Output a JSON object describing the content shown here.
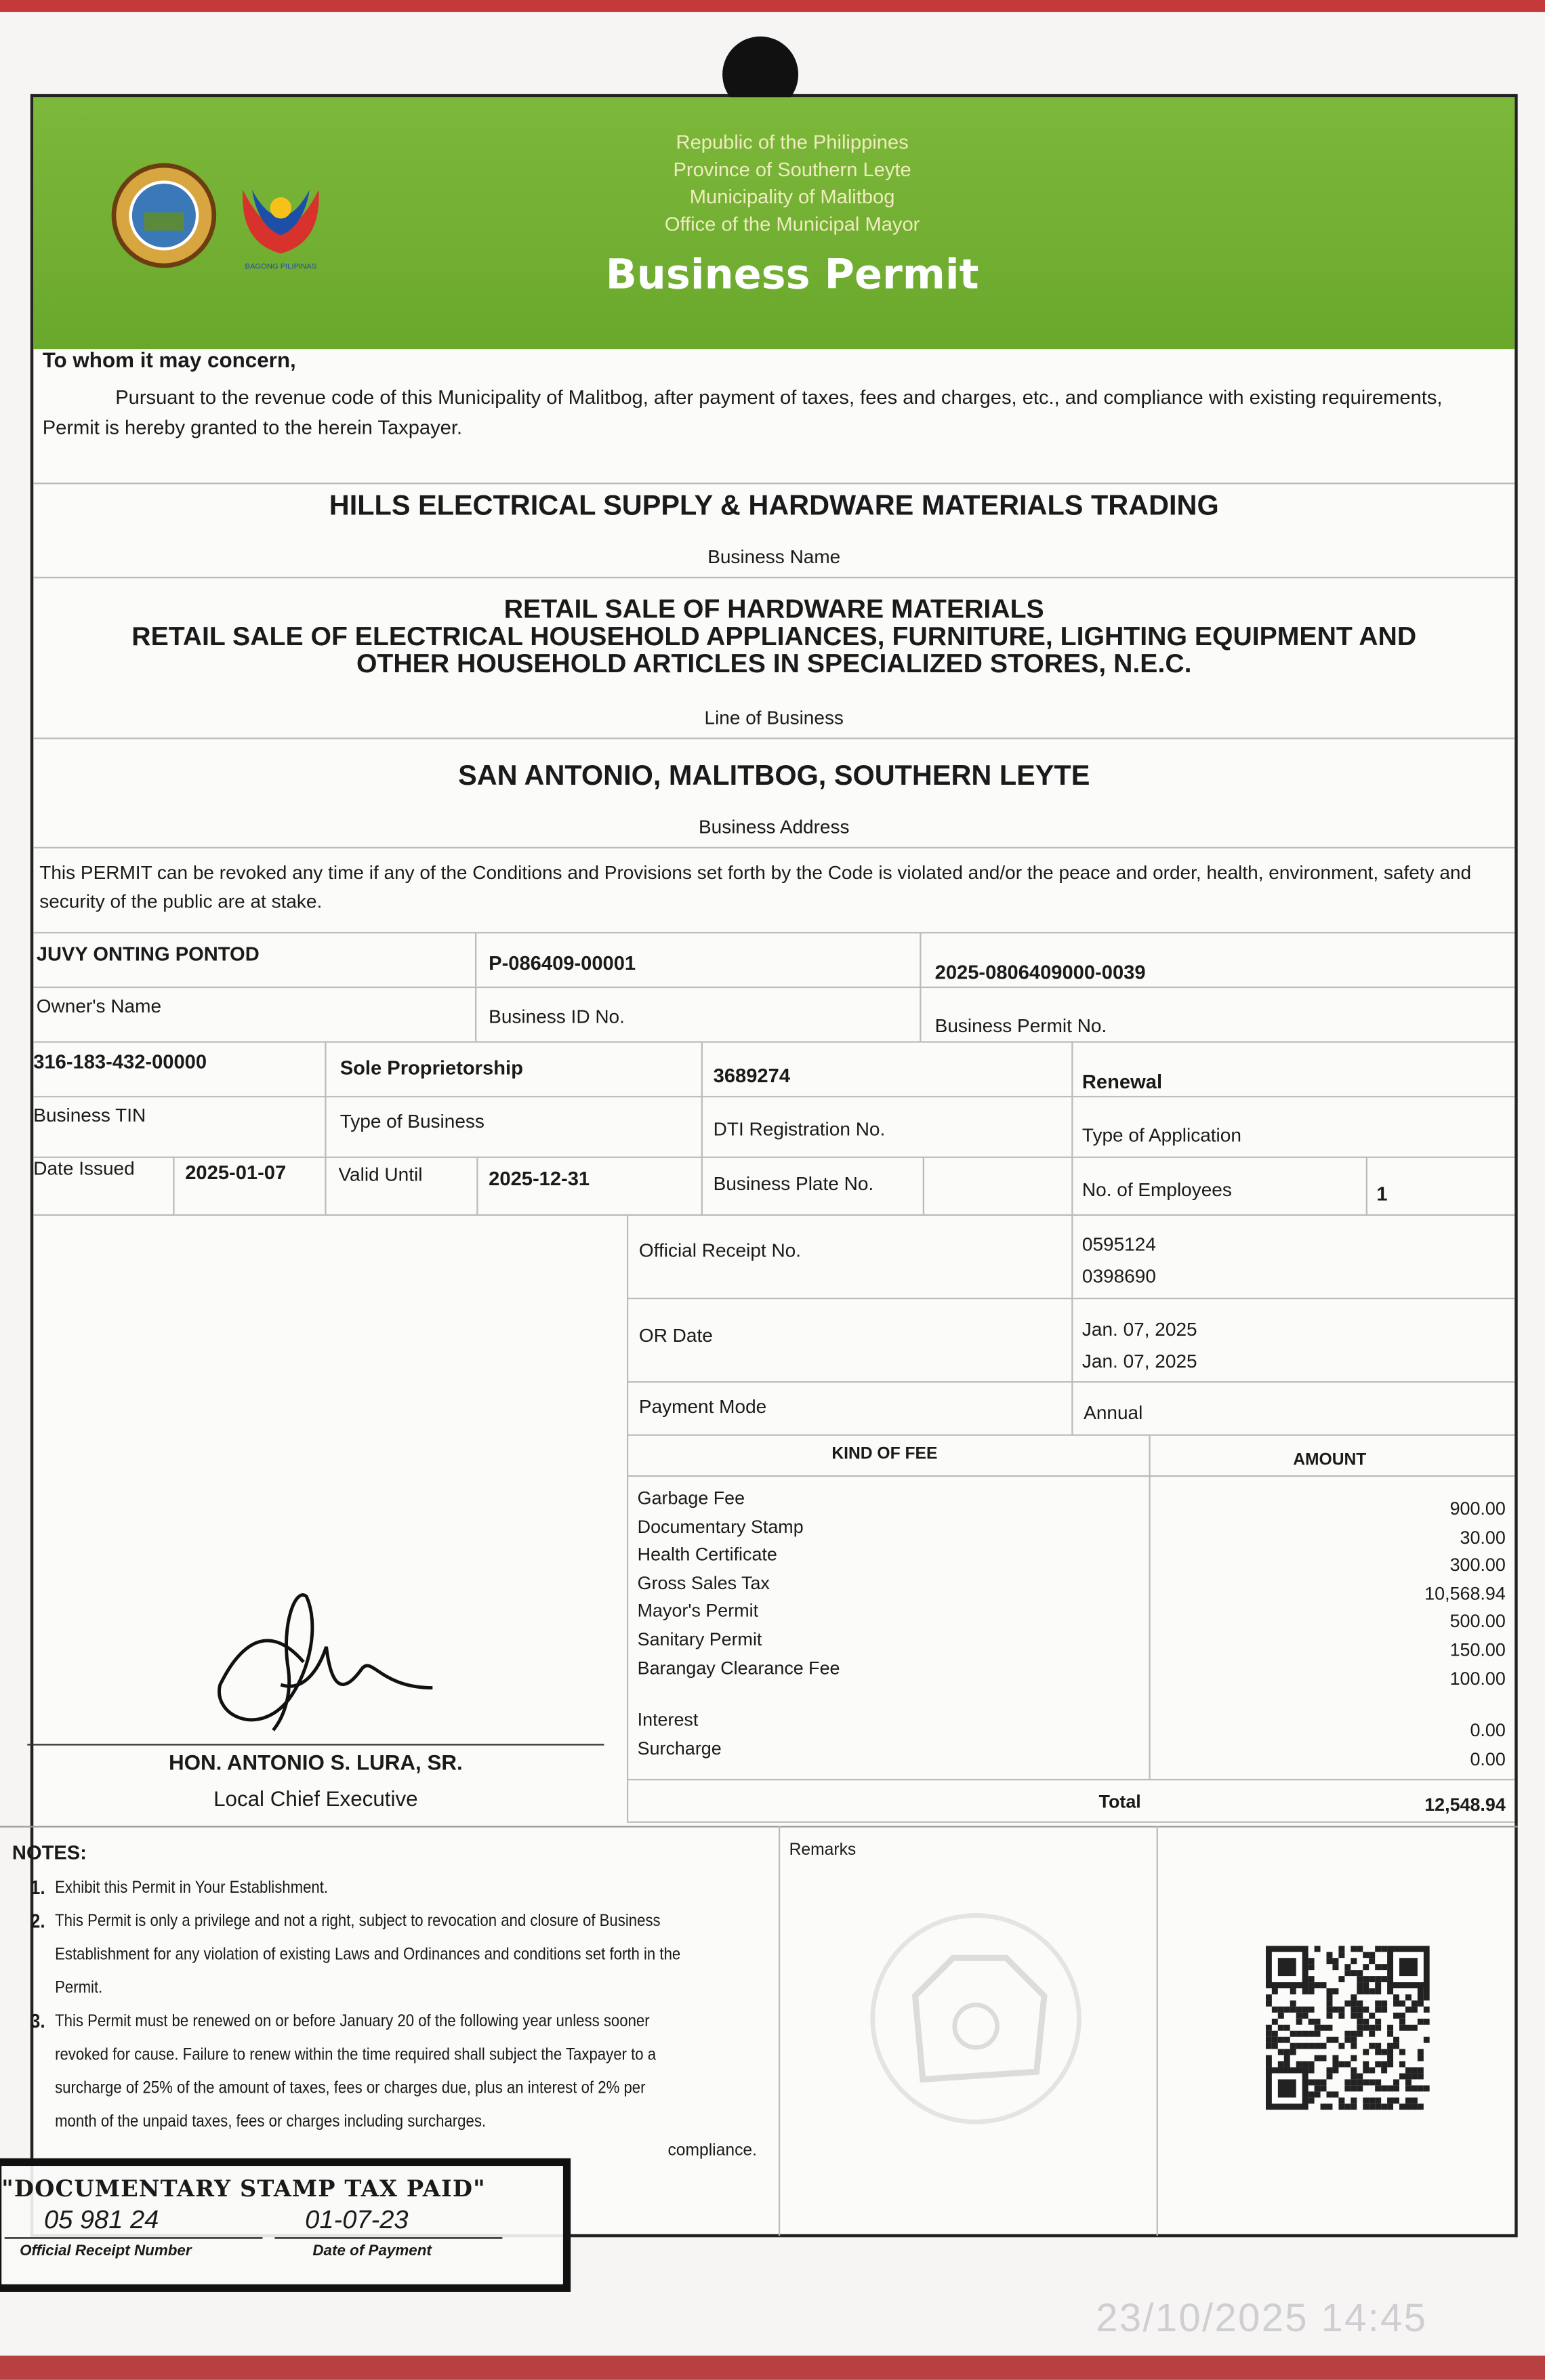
{
  "header": {
    "lines": [
      "Republic of the Philippines",
      "Province of Southern Leyte",
      "Municipality of Malitbog",
      "Office of the Municipal Mayor"
    ],
    "title": "Business Permit",
    "logo_text": "BAGONG PILIPINAS",
    "colors": {
      "header_green": "#72b032",
      "text": "#1a1a1a"
    }
  },
  "intro": {
    "salutation": "To whom it may concern,",
    "body": "Pursuant to the revenue code of this Municipality of Malitbog, after payment of taxes, fees and charges, etc., and compliance with existing requirements, Permit is hereby granted to the herein Taxpayer."
  },
  "business": {
    "name": "HILLS ELECTRICAL SUPPLY & HARDWARE MATERIALS TRADING",
    "name_label": "Business Name",
    "line_of_business": [
      "RETAIL SALE OF HARDWARE MATERIALS",
      "RETAIL SALE OF ELECTRICAL HOUSEHOLD APPLIANCES, FURNITURE, LIGHTING EQUIPMENT AND",
      "OTHER HOUSEHOLD ARTICLES IN SPECIALIZED STORES, N.E.C."
    ],
    "line_label": "Line of Business",
    "address": "SAN ANTONIO, MALITBOG, SOUTHERN LEYTE",
    "address_label": "Business Address"
  },
  "revocation": "This PERMIT can be revoked any time if any of the Conditions and Provisions set forth by the Code is violated and/or the peace and order, health, environment, safety and security of the public are at stake.",
  "details": {
    "owner_name": {
      "label": "Owner's Name",
      "value": "JUVY ONTING PONTOD"
    },
    "business_id": {
      "label": "Business ID No.",
      "value": "P-086409-00001"
    },
    "permit_no": {
      "label": "Business Permit No.",
      "value": "2025-0806409000-0039"
    },
    "tin": {
      "label": "Business TIN",
      "value": "316-183-432-00000"
    },
    "type_business": {
      "label": "Type of Business",
      "value": "Sole Proprietorship"
    },
    "dti": {
      "label": "DTI Registration No.",
      "value": "3689274"
    },
    "type_application": {
      "label": "Type of Application",
      "value": "Renewal"
    },
    "date_issued": {
      "label": "Date Issued",
      "value": "2025-01-07"
    },
    "valid_until": {
      "label": "Valid Until",
      "value": "2025-12-31"
    },
    "plate_no": {
      "label": "Business Plate No.",
      "value": ""
    },
    "employees": {
      "label": "No. of Employees",
      "value": "1"
    }
  },
  "payment": {
    "or_label": "Official Receipt No.",
    "or_values": [
      "0595124",
      "0398690"
    ],
    "or_date_label": "OR Date",
    "or_dates": [
      "Jan. 07, 2025",
      "Jan. 07, 2025"
    ],
    "mode_label": "Payment Mode",
    "mode": "Annual",
    "kind_header": "KIND OF FEE",
    "amount_header": "AMOUNT",
    "fees": [
      {
        "name": "Garbage Fee",
        "amount": "900.00"
      },
      {
        "name": "Documentary Stamp",
        "amount": "30.00"
      },
      {
        "name": "Health Certificate",
        "amount": "300.00"
      },
      {
        "name": "Gross Sales Tax",
        "amount": "10,568.94"
      },
      {
        "name": "Mayor's Permit",
        "amount": "500.00"
      },
      {
        "name": "Sanitary Permit",
        "amount": "150.00"
      },
      {
        "name": "Barangay Clearance Fee",
        "amount": "100.00"
      }
    ],
    "extra": [
      {
        "name": "Interest",
        "amount": "0.00"
      },
      {
        "name": "Surcharge",
        "amount": "0.00"
      }
    ],
    "total_label": "Total",
    "total": "12,548.94"
  },
  "signatory": {
    "name": "HON. ANTONIO S. LURA, SR.",
    "title": "Local Chief Executive"
  },
  "notes": {
    "heading": "NOTES:",
    "items": [
      {
        "num": "1.",
        "lines": [
          "Exhibit this Permit in Your Establishment."
        ]
      },
      {
        "num": "2.",
        "lines": [
          "This Permit is only a privilege and not a right, subject to revocation and closure of Business",
          "Establishment for any violation of existing Laws and Ordinances  and conditions set forth in the",
          "Permit."
        ]
      },
      {
        "num": "3.",
        "lines": [
          "This Permit must be renewed on or before January 20 of the following year unless sooner",
          "revoked for cause. Failure to renew within the time required shall subject the Taxpayer to a",
          "surcharge of 25% of the amount of taxes, fees or charges due, plus an interest of 2% per",
          "month of the unpaid taxes, fees or charges including surcharges."
        ]
      }
    ],
    "partial": "compliance."
  },
  "remarks_label": "Remarks",
  "stamp": {
    "title": "\"DOCUMENTARY STAMP TAX PAID\"",
    "receipt": "05 981 24",
    "date": "01-07-23",
    "receipt_label": "Official Receipt Number",
    "date_label": "Date of Payment"
  },
  "timestamp": "23/10/2025  14:45"
}
